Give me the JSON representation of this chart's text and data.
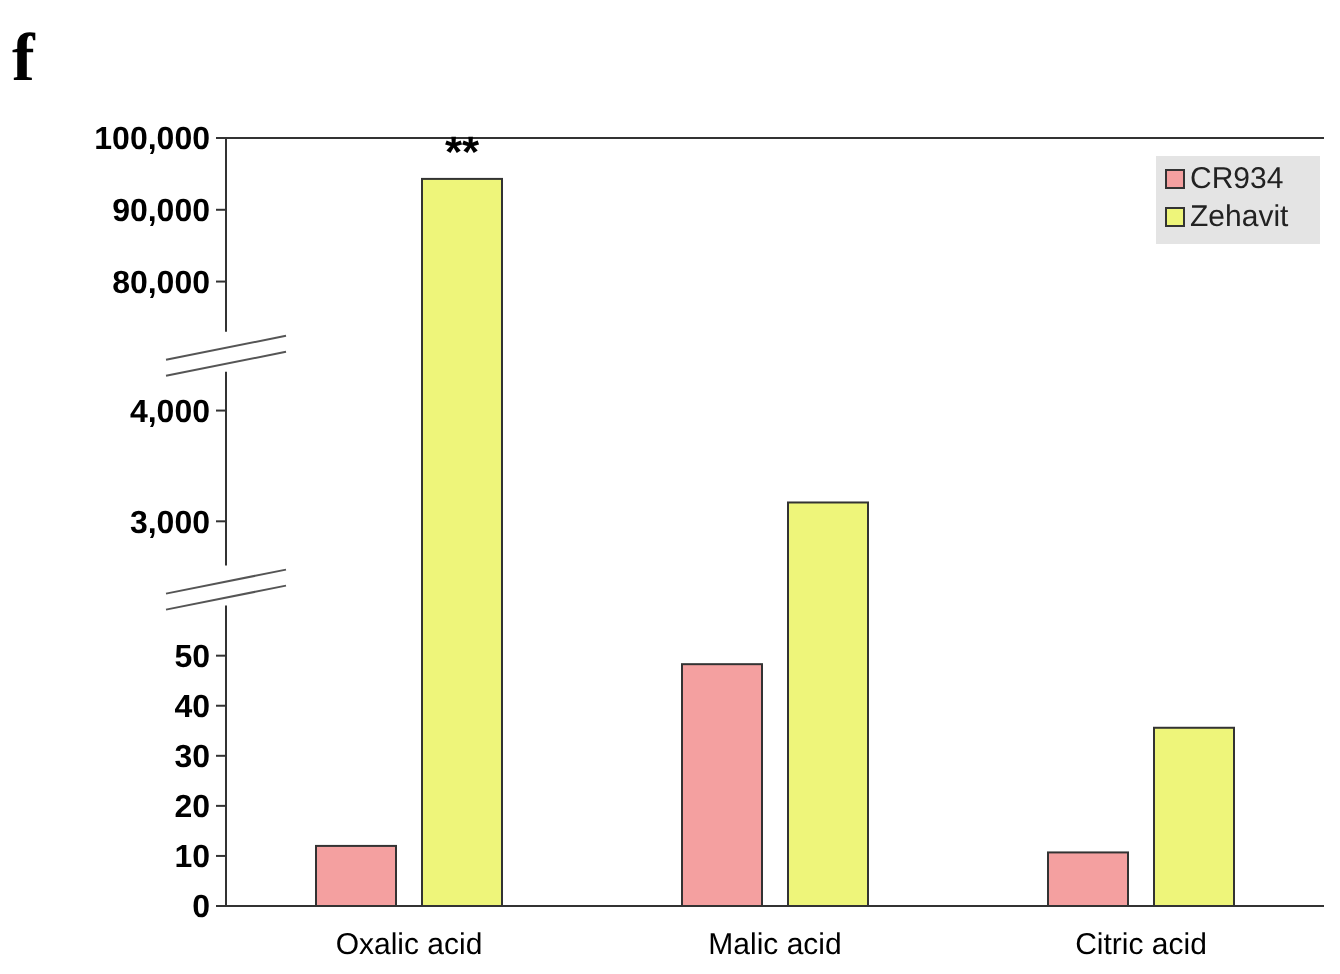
{
  "chart_data": [
    {
      "type": "bar",
      "title": "f",
      "categories": [
        null,
        null,
        null
      ],
      "series": [
        {
          "name": "CR934",
          "color": "#f4a0a0",
          "values": [
            null,
            null,
            null
          ]
        },
        {
          "name": "Zehavit",
          "color": "#eef57a",
          "values": [
            94300,
            null,
            null
          ]
        }
      ],
      "ylim": [
        73000,
        100000
      ],
      "yticks": [
        {
          "value": 80000,
          "label": "80,000"
        },
        {
          "value": 90000,
          "label": "90,000"
        },
        {
          "value": 100000,
          "label": "100,000"
        }
      ],
      "annotations": [
        "**"
      ],
      "legend": "top right",
      "tick_labels": "y",
      "grid": false
    },
    {
      "type": "bar",
      "categories": [
        null,
        null,
        null
      ],
      "series": [
        {
          "color": "#f4a0a0",
          "values": [
            null,
            null,
            null
          ]
        },
        {
          "color": "#eef57a",
          "values": [
            null,
            3170,
            null
          ]
        }
      ],
      "ylim": [
        2600,
        4350
      ],
      "yticks": [
        {
          "value": 3000,
          "label": "3,000"
        },
        {
          "value": 4000,
          "label": "4,000"
        }
      ],
      "tick_labels": "y"
    },
    {
      "type": "bar",
      "categories": [
        "Oxalic acid",
        "Malic acid",
        "Citric acid"
      ],
      "series": [
        {
          "color": "#f4a0a0",
          "values": [
            12,
            48.3,
            10.7
          ]
        },
        {
          "color": "#eef57a",
          "values": [
            null,
            null,
            35.6
          ]
        }
      ],
      "ylim": [
        0,
        60
      ],
      "yticks": [
        0,
        10,
        20,
        30,
        40,
        50
      ]
    }
  ]
}
